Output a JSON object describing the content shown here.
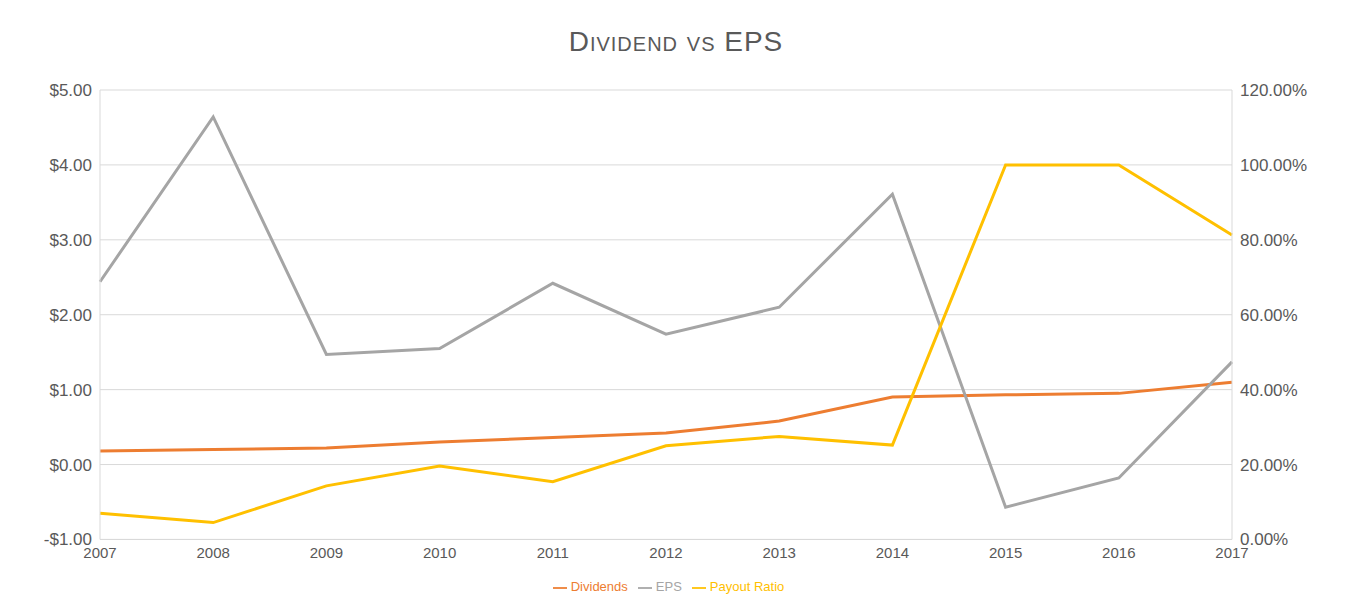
{
  "chart_data": {
    "type": "line",
    "title": "Dividend vs EPS",
    "categories": [
      "2007",
      "2008",
      "2009",
      "2010",
      "2011",
      "2012",
      "2013",
      "2014",
      "2015",
      "2016",
      "2017"
    ],
    "series": [
      {
        "name": "Dividends",
        "color": "#ed7d31",
        "axis": "y",
        "values": [
          0.18,
          0.2,
          0.22,
          0.3,
          0.36,
          0.42,
          0.58,
          0.9,
          0.93,
          0.95,
          1.1
        ]
      },
      {
        "name": "EPS",
        "color": "#a5a5a5",
        "axis": "y",
        "values": [
          2.44,
          4.64,
          1.47,
          1.55,
          2.42,
          1.74,
          2.1,
          3.61,
          -0.57,
          -0.18,
          1.37
        ]
      },
      {
        "name": "Payout Ratio",
        "color": "#ffc000",
        "axis": "y2",
        "values": [
          7.0,
          4.5,
          14.3,
          19.6,
          15.4,
          25.0,
          27.5,
          25.2,
          100,
          100,
          81.3
        ]
      }
    ],
    "ylim": [
      -1,
      5
    ],
    "yticks": [
      {
        "value": -1,
        "label": "-$1.00"
      },
      {
        "value": 0,
        "label": "$0.00"
      },
      {
        "value": 1,
        "label": "$1.00"
      },
      {
        "value": 2,
        "label": "$2.00"
      },
      {
        "value": 3,
        "label": "$3.00"
      },
      {
        "value": 4,
        "label": "$4.00"
      },
      {
        "value": 5,
        "label": "$5.00"
      }
    ],
    "y2lim": [
      0,
      120
    ],
    "y2ticks": [
      {
        "value": 0,
        "label": "0.00%"
      },
      {
        "value": 20,
        "label": "20.00%"
      },
      {
        "value": 40,
        "label": "40.00%"
      },
      {
        "value": 60,
        "label": "60.00%"
      },
      {
        "value": 80,
        "label": "80.00%"
      },
      {
        "value": 100,
        "label": "100.00%"
      },
      {
        "value": 120,
        "label": "120.00%"
      }
    ],
    "grid": true,
    "legend": "bottom",
    "marker": "none"
  }
}
